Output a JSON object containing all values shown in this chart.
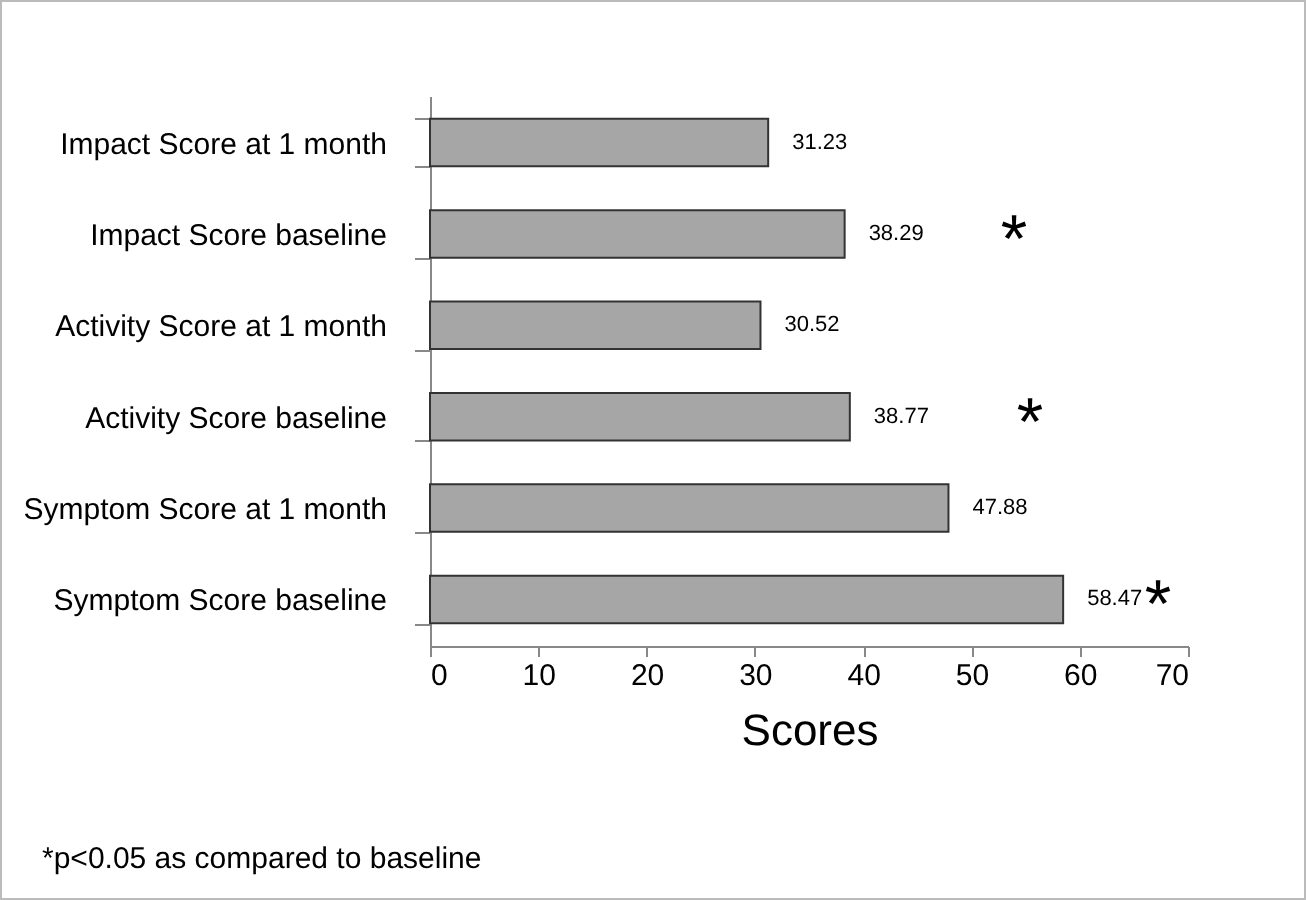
{
  "chart_data": {
    "type": "bar",
    "orientation": "horizontal",
    "xlabel": "Scores",
    "categories": [
      "Impact Score at 1 month",
      "Impact Score baseline",
      "Activity Score at 1 month",
      "Activity Score baseline",
      "Symptom Score at 1 month",
      "Symptom Score baseline"
    ],
    "values": [
      31.23,
      38.29,
      30.52,
      38.77,
      47.88,
      58.47
    ],
    "color": "#a6a6a6",
    "xlim": [
      0,
      70
    ],
    "xticks": [
      0,
      10,
      20,
      30,
      40,
      50,
      60,
      70
    ],
    "data_labels": true,
    "grid": false,
    "annotations": [
      "*",
      "*",
      "*",
      "*p<0.05 as compared to baseline"
    ]
  }
}
